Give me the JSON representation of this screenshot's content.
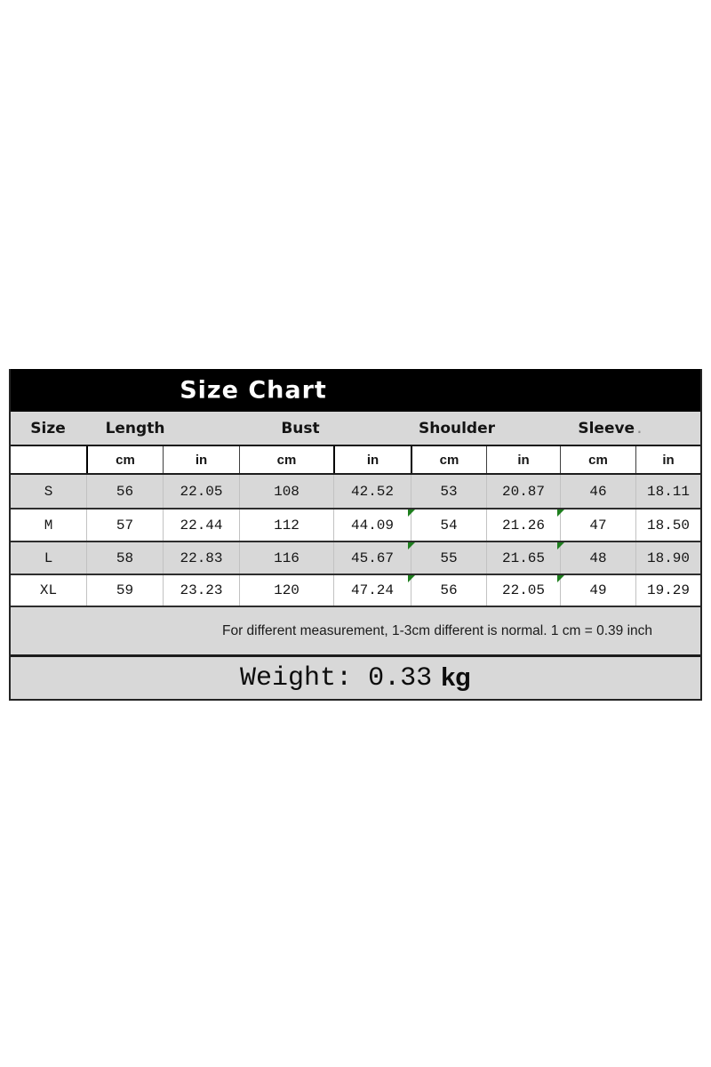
{
  "size_chart": {
    "title": "Size Chart",
    "columns": {
      "size": "Size",
      "length": "Length",
      "bust": "Bust",
      "shoulder": "Shoulder",
      "sleeve": "Sleeve",
      "sleeve_dot": "."
    },
    "units": [
      "cm",
      "in",
      "cm",
      "in",
      "cm",
      "in",
      "cm",
      "in"
    ],
    "rows": [
      {
        "size": "S",
        "values": [
          "56",
          "22.05",
          "108",
          "42.52",
          "53",
          "20.87",
          "46",
          "18.11"
        ]
      },
      {
        "size": "M",
        "values": [
          "57",
          "22.44",
          "112",
          "44.09",
          "54",
          "21.26",
          "47",
          "18.50"
        ]
      },
      {
        "size": "L",
        "values": [
          "58",
          "22.83",
          "116",
          "45.67",
          "55",
          "21.65",
          "48",
          "18.90"
        ]
      },
      {
        "size": "XL",
        "values": [
          "59",
          "23.23",
          "120",
          "47.24",
          "56",
          "22.05",
          "49",
          "19.29"
        ]
      }
    ],
    "note": "For different measurement, 1-3cm different is normal. 1 cm = 0.39 inch",
    "weight": {
      "text": "Weight: 0.33",
      "unit": "kg"
    },
    "colors": {
      "band": "#000000",
      "row_gray": "#d8d8d8",
      "marker_green": "#1e7e1e"
    }
  }
}
